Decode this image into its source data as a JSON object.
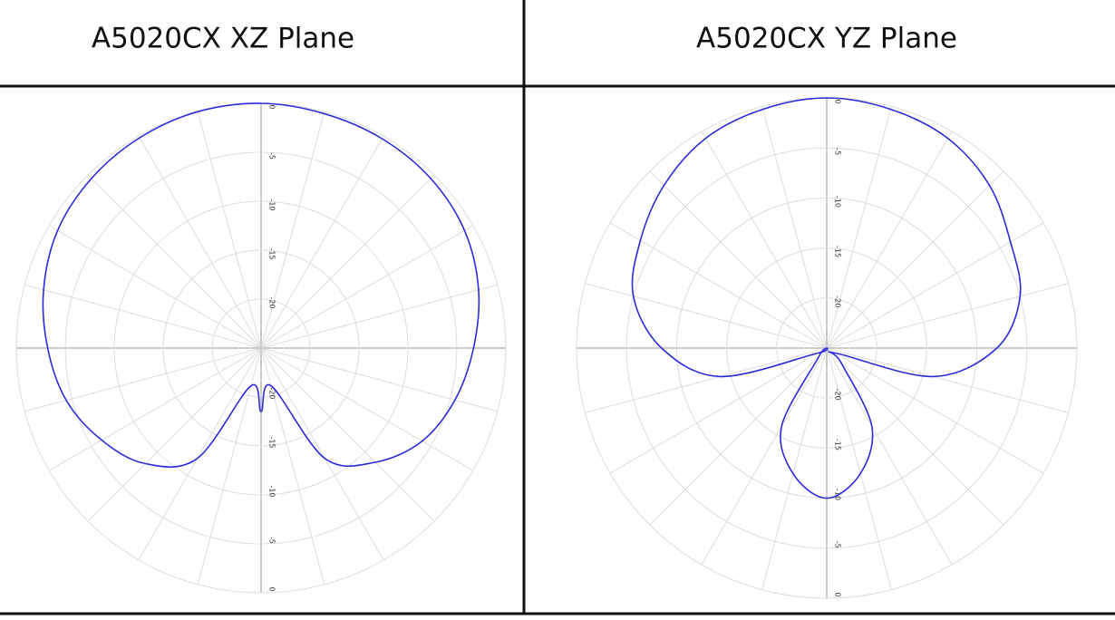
{
  "headers": [
    "A5020CX XZ Plane",
    "A5020CX YZ Plane"
  ],
  "chart_data": [
    {
      "type": "polar",
      "color": "#2b2bdc",
      "theta": [
        0,
        15,
        30,
        45,
        60,
        75,
        90,
        105,
        120,
        135,
        150,
        165,
        180,
        195,
        210,
        225,
        240,
        255,
        270,
        285,
        300,
        315,
        330,
        345
      ],
      "values": [
        0,
        -0.2,
        -0.3,
        -0.5,
        -1,
        -2,
        -3.3,
        -4.5,
        -6,
        -8.5,
        -12,
        -21,
        -18.5,
        -21,
        -12,
        -8.3,
        -6.2,
        -4.4,
        -3.2,
        -2,
        -1,
        -0.5,
        -0.2,
        0
      ],
      "rlim": [
        -25,
        0
      ],
      "rticks": [
        0,
        -5,
        -10,
        -15,
        -20
      ]
    },
    {
      "type": "polar",
      "color": "#2b2bdc",
      "theta": [
        0,
        15,
        30,
        45,
        60,
        75,
        90,
        105,
        120,
        135,
        150,
        165,
        180,
        195,
        210,
        225,
        240,
        255,
        270,
        285,
        300,
        315,
        330,
        345
      ],
      "values": [
        0,
        -0.3,
        -0.8,
        -2,
        -3.8,
        -5,
        -8,
        -14,
        -24,
        -23,
        -16,
        -12,
        -10,
        -12,
        -16,
        -24,
        -24,
        -14,
        -8.5,
        -5,
        -3.5,
        -2,
        -0.8,
        -0.3
      ],
      "rlim": [
        -25,
        0
      ],
      "rticks": [
        0,
        -5,
        -10,
        -15,
        -20
      ]
    }
  ]
}
